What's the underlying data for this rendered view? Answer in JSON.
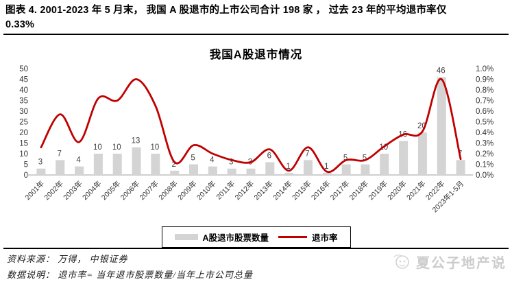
{
  "header": {
    "title_line1": "图表 4. 2001-2023 年 5 月末，  我国 A 股退市的上市公司合计 198 家 ，  过去 23 年的平均退市率仅",
    "title_line2": "0.33%"
  },
  "chart_data": {
    "type": "bar",
    "combo": "bar+line",
    "title": "我国A股退市情况",
    "categories": [
      "2001年",
      "2002年",
      "2003年",
      "2004年",
      "2005年",
      "2006年",
      "2007年",
      "2008年",
      "2009年",
      "2010年",
      "2011年",
      "2012年",
      "2013年",
      "2014年",
      "2015年",
      "2016年",
      "2017年",
      "2018年",
      "2019年",
      "2020年",
      "2021年",
      "2022年",
      "2023年1-5月"
    ],
    "series": [
      {
        "name": "A股退市股票数量",
        "type": "bar",
        "axis": "left",
        "color": "#d4d4d4",
        "values": [
          3,
          7,
          4,
          10,
          10,
          13,
          10,
          2,
          5,
          4,
          3,
          3,
          6,
          1,
          7,
          1,
          5,
          5,
          10,
          16,
          20,
          46,
          7
        ]
      },
      {
        "name": "退市率",
        "type": "line",
        "axis": "right",
        "color": "#c00000",
        "values_percent": [
          0.26,
          0.57,
          0.31,
          0.72,
          0.7,
          0.9,
          0.65,
          0.12,
          0.28,
          0.2,
          0.14,
          0.12,
          0.24,
          0.04,
          0.26,
          0.03,
          0.14,
          0.14,
          0.27,
          0.38,
          0.41,
          0.9,
          0.15
        ]
      }
    ],
    "left_axis": {
      "min": 0,
      "max": 50,
      "step": 5,
      "ticks": [
        "50",
        "45",
        "40",
        "35",
        "30",
        "25",
        "20",
        "15",
        "10",
        "5",
        "0"
      ]
    },
    "right_axis": {
      "min": 0,
      "max": 1.0,
      "step": 0.1,
      "ticks": [
        "1.0%",
        "0.9%",
        "0.8%",
        "0.7%",
        "0.6%",
        "0.5%",
        "0.4%",
        "0.3%",
        "0.2%",
        "0.1%",
        "0.0%"
      ]
    },
    "grid": "off",
    "legend_position": "bottom-center",
    "label_color": "#404040"
  },
  "footer": {
    "source": "资料来源： 万得，  中银证券",
    "note": "数据说明： 退市率= 当年退市股票数量/当年上市公司总量",
    "watermark": "夏公子地产说"
  }
}
